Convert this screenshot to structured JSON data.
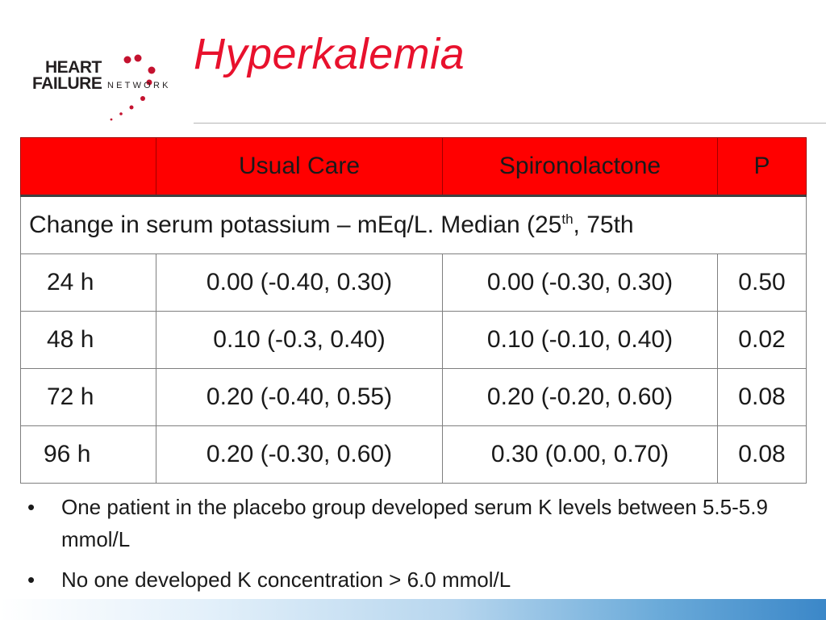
{
  "logo": {
    "line1": "HEART",
    "line2": "FAILURE",
    "line3": "NETWORK"
  },
  "title": "Hyperkalemia",
  "table": {
    "headers": [
      "",
      "Usual Care",
      "Spironolactone",
      "P"
    ],
    "span_row": {
      "text": "Change in serum potassium – mEq/L.   Median (25",
      "sup": "th",
      "tail": ", 75th"
    },
    "rows": [
      {
        "time": "24 h",
        "usual": "0.00 (-0.40, 0.30)",
        "spiro": "0.00 (-0.30, 0.30)",
        "p": "0.50"
      },
      {
        "time": "48 h",
        "usual": "0.10 (-0.3, 0.40)",
        "spiro": "0.10 (-0.10, 0.40)",
        "p": "0.02"
      },
      {
        "time": "72 h",
        "usual": "0.20 (-0.40, 0.55)",
        "spiro": "0.20 (-0.20, 0.60)",
        "p": "0.08"
      },
      {
        "time": "96 h",
        "usual": "0.20 (-0.30, 0.60)",
        "spiro": "0.30 (0.00, 0.70)",
        "p": "0.08"
      }
    ]
  },
  "bullets": [
    {
      "marker": "•",
      "text": "One patient in the placebo group developed serum K levels between 5.5-5.9 mmol/L"
    },
    {
      "marker": "•",
      "text": "No one developed K concentration > 6.0 mmol/L"
    }
  ],
  "colors": {
    "accent": "#e8112d",
    "header_fill": "#ff0000",
    "footer": "#3b87c8"
  }
}
